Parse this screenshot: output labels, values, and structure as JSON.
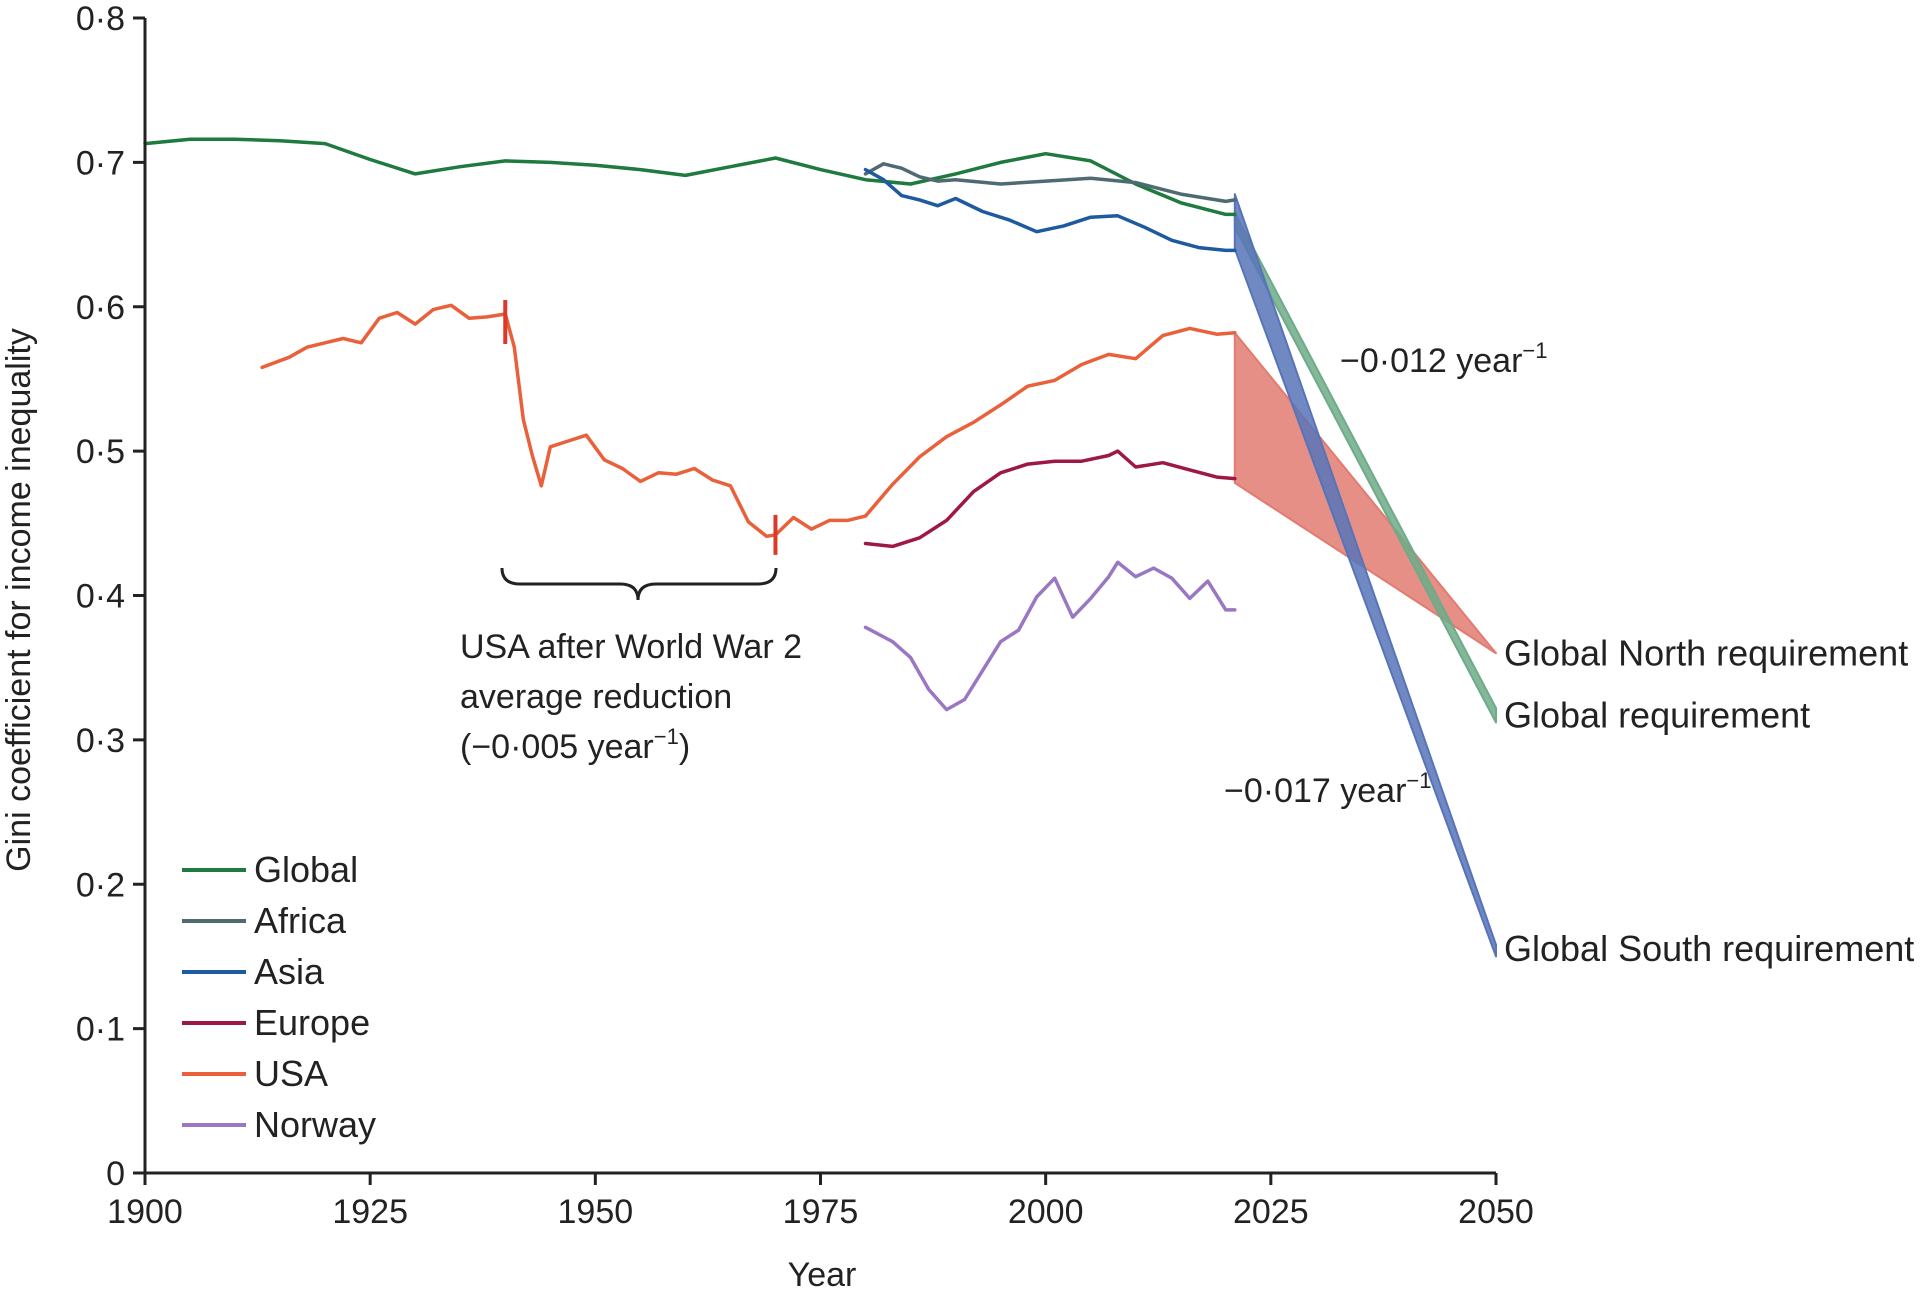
{
  "chart_data": {
    "type": "line",
    "title": "",
    "xlabel": "Year",
    "ylabel": "Gini coefficient for income inequality",
    "xlim": [
      1900,
      2050
    ],
    "ylim": [
      0,
      0.8
    ],
    "x_ticks": [
      1900,
      1925,
      1950,
      1975,
      2000,
      2025,
      2050
    ],
    "x_tick_labels": [
      "1900",
      "1925",
      "1950",
      "1975",
      "2000",
      "2025",
      "2050"
    ],
    "y_ticks": [
      0,
      0.1,
      0.2,
      0.3,
      0.4,
      0.5,
      0.6,
      0.7,
      0.8
    ],
    "y_tick_labels": [
      "0",
      "0·1",
      "0·2",
      "0·3",
      "0·4",
      "0·5",
      "0·6",
      "0·7",
      "0·8"
    ],
    "grid": false,
    "legend_position": "bottom-left",
    "series": [
      {
        "name": "Global",
        "color": "#1e7a3e",
        "x": [
          1900,
          1905,
          1910,
          1915,
          1920,
          1925,
          1930,
          1935,
          1940,
          1945,
          1950,
          1955,
          1960,
          1965,
          1970,
          1975,
          1980,
          1985,
          1990,
          1995,
          2000,
          2005,
          2010,
          2015,
          2020,
          2021
        ],
        "y": [
          0.713,
          0.716,
          0.716,
          0.715,
          0.713,
          0.702,
          0.692,
          0.697,
          0.701,
          0.7,
          0.698,
          0.695,
          0.691,
          0.697,
          0.703,
          0.695,
          0.688,
          0.685,
          0.692,
          0.7,
          0.706,
          0.701,
          0.685,
          0.672,
          0.664,
          0.664
        ]
      },
      {
        "name": "Africa",
        "color": "#4f6b72",
        "x": [
          1980,
          1982,
          1984,
          1986,
          1988,
          1990,
          1995,
          2000,
          2005,
          2010,
          2015,
          2020,
          2021
        ],
        "y": [
          0.692,
          0.699,
          0.696,
          0.69,
          0.687,
          0.688,
          0.685,
          0.687,
          0.689,
          0.686,
          0.678,
          0.673,
          0.674
        ]
      },
      {
        "name": "Asia",
        "color": "#1e5a9e",
        "x": [
          1980,
          1982,
          1984,
          1986,
          1988,
          1990,
          1993,
          1996,
          1999,
          2002,
          2005,
          2008,
          2011,
          2014,
          2017,
          2020,
          2021
        ],
        "y": [
          0.695,
          0.688,
          0.677,
          0.674,
          0.67,
          0.675,
          0.666,
          0.66,
          0.652,
          0.656,
          0.662,
          0.663,
          0.655,
          0.646,
          0.641,
          0.639,
          0.639
        ]
      },
      {
        "name": "Europe",
        "color": "#9e1846",
        "x": [
          1980,
          1983,
          1986,
          1989,
          1992,
          1995,
          1998,
          2001,
          2004,
          2007,
          2008,
          2010,
          2013,
          2016,
          2019,
          2021
        ],
        "y": [
          0.436,
          0.434,
          0.44,
          0.452,
          0.472,
          0.485,
          0.491,
          0.493,
          0.493,
          0.497,
          0.5,
          0.489,
          0.492,
          0.487,
          0.482,
          0.481
        ]
      },
      {
        "name": "USA",
        "color": "#e9603a",
        "x": [
          1913,
          1916,
          1918,
          1920,
          1922,
          1924,
          1926,
          1928,
          1930,
          1932,
          1934,
          1936,
          1938,
          1940,
          1941,
          1942,
          1943,
          1944,
          1945,
          1947,
          1949,
          1951,
          1953,
          1955,
          1957,
          1959,
          1961,
          1963,
          1965,
          1967,
          1969,
          1970,
          1972,
          1974,
          1976,
          1978,
          1980,
          1983,
          1986,
          1989,
          1992,
          1995,
          1998,
          2001,
          2004,
          2007,
          2010,
          2013,
          2016,
          2019,
          2021
        ],
        "y": [
          0.558,
          0.565,
          0.572,
          0.575,
          0.578,
          0.575,
          0.592,
          0.596,
          0.588,
          0.598,
          0.601,
          0.592,
          0.593,
          0.595,
          0.572,
          0.522,
          0.497,
          0.476,
          0.503,
          0.507,
          0.511,
          0.494,
          0.488,
          0.479,
          0.485,
          0.484,
          0.488,
          0.48,
          0.476,
          0.451,
          0.441,
          0.442,
          0.454,
          0.446,
          0.452,
          0.452,
          0.455,
          0.477,
          0.496,
          0.51,
          0.52,
          0.532,
          0.545,
          0.549,
          0.56,
          0.567,
          0.564,
          0.58,
          0.585,
          0.581,
          0.582
        ]
      },
      {
        "name": "Norway",
        "color": "#9a77c2",
        "x": [
          1980,
          1983,
          1985,
          1987,
          1989,
          1991,
          1993,
          1995,
          1997,
          1999,
          2001,
          2003,
          2005,
          2007,
          2008,
          2010,
          2012,
          2014,
          2016,
          2018,
          2020,
          2021
        ],
        "y": [
          0.378,
          0.368,
          0.357,
          0.335,
          0.321,
          0.328,
          0.348,
          0.368,
          0.376,
          0.399,
          0.412,
          0.385,
          0.398,
          0.413,
          0.423,
          0.413,
          0.419,
          0.412,
          0.398,
          0.41,
          0.39,
          0.39
        ]
      }
    ],
    "requirement_bands": [
      {
        "name": "Global North requirement",
        "color": "#e27b71",
        "x": [
          2021,
          2050
        ],
        "upper": [
          0.582,
          0.36
        ],
        "lower": [
          0.478,
          0.36
        ]
      },
      {
        "name": "Global requirement",
        "color": "#6fab88",
        "x": [
          2021,
          2050
        ],
        "upper": [
          0.665,
          0.322
        ],
        "lower": [
          0.655,
          0.312
        ]
      },
      {
        "name": "Global South requirement",
        "color": "#5874b8",
        "x": [
          2021,
          2050
        ],
        "upper": [
          0.678,
          0.158
        ],
        "lower": [
          0.64,
          0.15
        ]
      }
    ],
    "annotations": {
      "usa_line1": "USA after World War 2",
      "usa_line2": "average reduction",
      "usa_line3": "(−0·005 year",
      "usa_line3_exp": "−1",
      "usa_line3_end": ")",
      "rate_global": "−0·012 year",
      "rate_global_exp": "−1",
      "rate_south": "−0·017 year",
      "rate_south_exp": "−1",
      "usa_ww2_start_year": 1940,
      "usa_ww2_end_year": 1970
    }
  }
}
